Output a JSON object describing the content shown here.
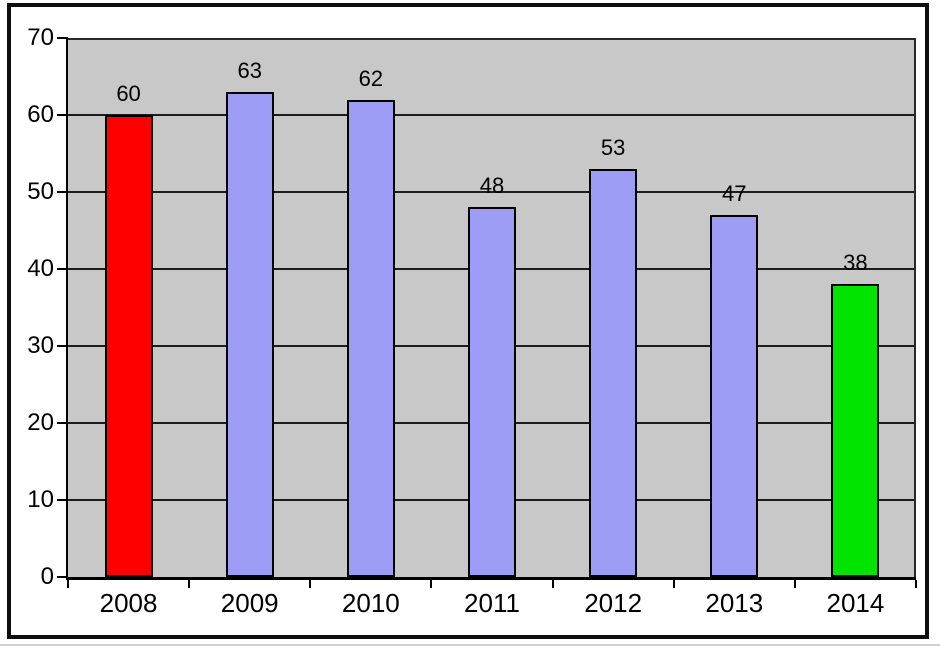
{
  "chart_data": {
    "type": "bar",
    "title": "",
    "categories": [
      "2008",
      "2009",
      "2010",
      "2011",
      "2012",
      "2013",
      "2014"
    ],
    "values": [
      60,
      63,
      62,
      48,
      53,
      47,
      38
    ],
    "data_labels": [
      "60",
      "63",
      "62",
      "48",
      "53",
      "47",
      "38"
    ],
    "bar_colors": [
      "#fe0000",
      "#9d9df5",
      "#9d9df5",
      "#9d9df5",
      "#9d9df5",
      "#9d9df5",
      "#00e400"
    ],
    "xlabel": "",
    "ylabel": "",
    "ylim": [
      0,
      70
    ],
    "yticks": [
      0,
      10,
      20,
      30,
      40,
      50,
      60,
      70
    ],
    "ytick_labels": [
      "0",
      "10",
      "20",
      "30",
      "40",
      "50",
      "60",
      "70"
    ],
    "grid": "horizontal",
    "gridline_color": "#1c1c1c",
    "legend": "none",
    "plot_background": "#c8c8c8",
    "page_background": "#ffffff",
    "frame_border_color": "#0e0e0e",
    "bar_border_color": "#000000",
    "text_color": "#000000"
  }
}
